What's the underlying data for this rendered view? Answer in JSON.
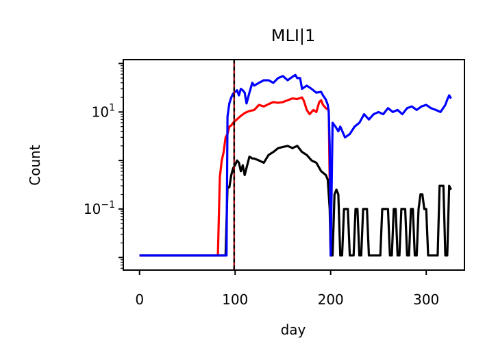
{
  "chart_data": {
    "type": "line",
    "title": "MLI|1",
    "xlabel": "day",
    "ylabel": "Count",
    "xlim": [
      -17,
      340
    ],
    "ylim": [
      0.0055,
      120
    ],
    "yscale": "log",
    "xticks": [
      0,
      100,
      200,
      300
    ],
    "xtick_labels": [
      "0",
      "100",
      "200",
      "300"
    ],
    "yticks": [
      0.1,
      10
    ],
    "ytick_labels": [
      {
        "base": "10",
        "exp": "−1"
      },
      {
        "base": "10",
        "exp": "1"
      }
    ],
    "vline": {
      "x": 99,
      "style": "dashed",
      "color": "#8b0000"
    },
    "grid": false,
    "series": [
      {
        "color": "#ff0000",
        "x": [
          0,
          82,
          84,
          86,
          88,
          90,
          92,
          94,
          96,
          98,
          100,
          105,
          110,
          115,
          120,
          125,
          130,
          135,
          140,
          145,
          150,
          155,
          160,
          165,
          170,
          172,
          175,
          178,
          180,
          182,
          185,
          188,
          190,
          192,
          195,
          198,
          200
        ],
        "y": [
          0.011,
          0.011,
          0.45,
          1.0,
          1.5,
          3.0,
          3.5,
          5.0,
          5.3,
          6.0,
          6.5,
          8.0,
          9.5,
          10.5,
          11.0,
          14.0,
          13.0,
          14.5,
          16.0,
          15.5,
          16.0,
          17.5,
          19.0,
          18.5,
          20.0,
          17.0,
          11.0,
          9.0,
          10.0,
          11.0,
          10.0,
          16.0,
          17.5,
          14.0,
          12.0,
          11.0,
          0.011
        ]
      },
      {
        "color": "#000000",
        "x": [
          0,
          88,
          90,
          92,
          94,
          96,
          98,
          100,
          102,
          104,
          106,
          108,
          110,
          115,
          118,
          120,
          125,
          130,
          135,
          140,
          145,
          150,
          155,
          160,
          165,
          170,
          175,
          180,
          185,
          190,
          195,
          197,
          198,
          199,
          200,
          202,
          204,
          206,
          208,
          210,
          212,
          214,
          216,
          218,
          220,
          222,
          224,
          226,
          228,
          230,
          232,
          234,
          236,
          238,
          240,
          242,
          244,
          246,
          248,
          250,
          252,
          254,
          256,
          258,
          260,
          262,
          264,
          266,
          268,
          270,
          272,
          274,
          276,
          278,
          280,
          282,
          284,
          286,
          288,
          290,
          292,
          294,
          296,
          298,
          300,
          302,
          304,
          306,
          308,
          310,
          312,
          314,
          316,
          318,
          320,
          322,
          324,
          326
        ],
        "y": [
          0.011,
          0.011,
          0.011,
          0.28,
          0.28,
          0.5,
          0.7,
          0.8,
          1.0,
          0.9,
          0.6,
          0.8,
          0.5,
          1.2,
          1.1,
          1.1,
          1.0,
          0.9,
          1.3,
          1.5,
          1.8,
          1.9,
          2.0,
          1.8,
          2.0,
          1.5,
          1.3,
          1.0,
          0.9,
          0.6,
          0.5,
          0.4,
          0.2,
          0.1,
          0.011,
          0.011,
          0.2,
          0.25,
          0.2,
          0.011,
          0.011,
          0.1,
          0.1,
          0.1,
          0.011,
          0.011,
          0.011,
          0.1,
          0.1,
          0.011,
          0.011,
          0.1,
          0.1,
          0.1,
          0.011,
          0.011,
          0.011,
          0.011,
          0.011,
          0.011,
          0.011,
          0.1,
          0.1,
          0.1,
          0.1,
          0.011,
          0.011,
          0.1,
          0.1,
          0.011,
          0.011,
          0.1,
          0.1,
          0.1,
          0.011,
          0.011,
          0.1,
          0.1,
          0.011,
          0.011,
          0.1,
          0.2,
          0.2,
          0.1,
          0.1,
          0.011,
          0.011,
          0.011,
          0.011,
          0.011,
          0.011,
          0.3,
          0.3,
          0.3,
          0.011,
          0.011,
          0.3,
          0.25
        ]
      },
      {
        "color": "#0000ff",
        "x": [
          0,
          90,
          91,
          92,
          94,
          96,
          98,
          100,
          102,
          104,
          106,
          108,
          110,
          112,
          115,
          118,
          120,
          125,
          130,
          135,
          140,
          145,
          150,
          155,
          160,
          163,
          165,
          168,
          170,
          175,
          180,
          185,
          190,
          192,
          195,
          197,
          198,
          199,
          200,
          202,
          205,
          208,
          210,
          215,
          220,
          225,
          230,
          235,
          240,
          245,
          250,
          255,
          260,
          265,
          270,
          275,
          280,
          285,
          290,
          295,
          300,
          305,
          310,
          315,
          320,
          322,
          324,
          326
        ],
        "y": [
          0.011,
          0.011,
          0.011,
          8.0,
          15.0,
          20.0,
          24.0,
          26.0,
          28.0,
          22.0,
          30.0,
          28.0,
          25.0,
          15.0,
          25.0,
          40.0,
          35.0,
          40.0,
          45.0,
          45.0,
          40.0,
          50.0,
          55.0,
          45.0,
          53.0,
          58.0,
          50.0,
          50.0,
          30.0,
          35.0,
          30.0,
          25.0,
          26.0,
          22.0,
          18.0,
          14.0,
          10.0,
          2.0,
          0.011,
          6.0,
          5.0,
          4.0,
          5.0,
          3.0,
          3.5,
          5.0,
          6.0,
          9.0,
          7.0,
          9.0,
          10.0,
          9.0,
          12.0,
          10.0,
          11.0,
          9.0,
          12.0,
          13.0,
          11.0,
          13.0,
          14.0,
          12.0,
          11.0,
          10.0,
          14.0,
          18.0,
          22.0,
          19.0
        ]
      }
    ]
  }
}
